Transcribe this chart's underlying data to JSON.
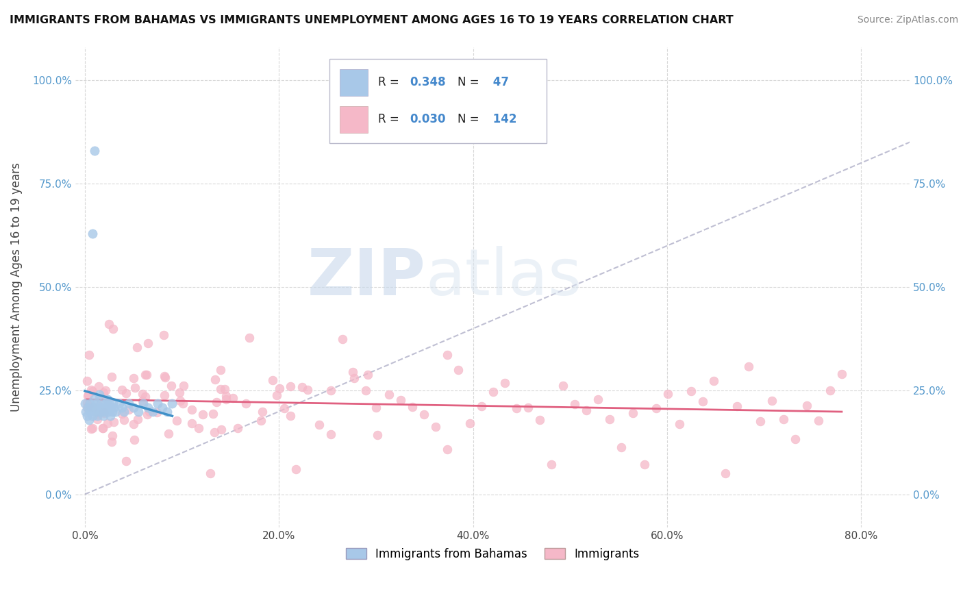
{
  "title": "IMMIGRANTS FROM BAHAMAS VS IMMIGRANTS UNEMPLOYMENT AMONG AGES 16 TO 19 YEARS CORRELATION CHART",
  "source": "Source: ZipAtlas.com",
  "xlabel_ticks": [
    "0.0%",
    "20.0%",
    "40.0%",
    "60.0%",
    "80.0%"
  ],
  "xlabel_vals": [
    0,
    20,
    40,
    60,
    80
  ],
  "ylabel_ticks": [
    "0.0%",
    "25.0%",
    "50.0%",
    "75.0%",
    "100.0%"
  ],
  "ylabel_vals": [
    0,
    25,
    50,
    75,
    100
  ],
  "ylabel_label": "Unemployment Among Ages 16 to 19 years",
  "legend_label1": "Immigrants from Bahamas",
  "legend_label2": "Immigrants",
  "R1": 0.348,
  "N1": 47,
  "R2": 0.03,
  "N2": 142,
  "color_blue": "#a8c8e8",
  "color_pink": "#f5b8c8",
  "color_blue_line": "#4090c8",
  "color_pink_line": "#e06080",
  "color_diag": "#b0b0c8",
  "watermark_zip": "ZIP",
  "watermark_atlas": "atlas",
  "bg_color": "#ffffff",
  "grid_color": "#d8d8d8",
  "xlim": [
    -1,
    85
  ],
  "ylim": [
    -8,
    108
  ]
}
